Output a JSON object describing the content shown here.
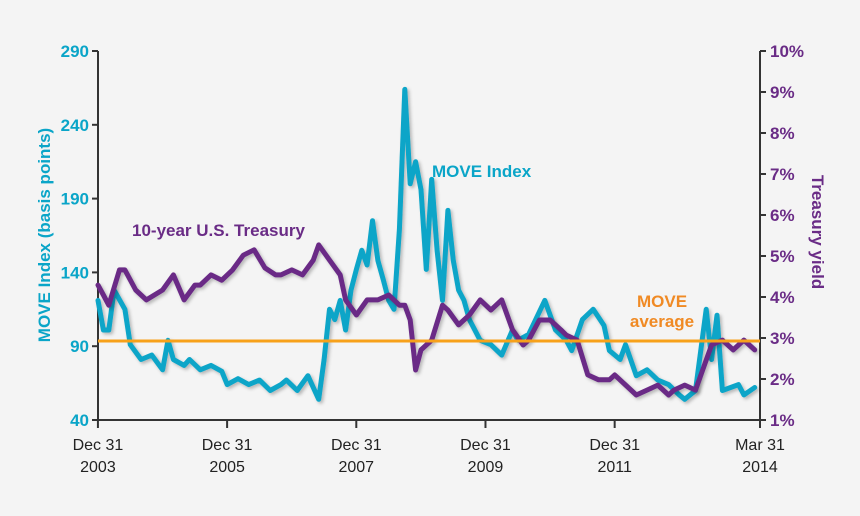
{
  "chart_data": {
    "type": "line",
    "colors": {
      "move": "#0aa5c8",
      "treasury": "#6a2c86",
      "average": "#f7a11a",
      "average_label": "#f08a24",
      "background": "#f4f4f4",
      "axis": "#333333"
    },
    "y_left": {
      "label": "MOVE Index (basis points)",
      "range": [
        40,
        290
      ],
      "ticks": [
        "40",
        "90",
        "140",
        "190",
        "240",
        "290"
      ]
    },
    "y_right": {
      "label": "Treasury yield",
      "range": [
        1,
        10
      ],
      "ticks": [
        "1%",
        "2%",
        "3%",
        "4%",
        "5%",
        "6%",
        "7%",
        "8%",
        "9%",
        "10%"
      ]
    },
    "x_axis": {
      "range": [
        "2003-12-31",
        "2014-03-31"
      ],
      "ticks": [
        {
          "date": "2003-12-31",
          "line1": "Dec 31",
          "line2": "2003"
        },
        {
          "date": "2005-12-31",
          "line1": "Dec 31",
          "line2": "2005"
        },
        {
          "date": "2007-12-31",
          "line1": "Dec 31",
          "line2": "2007"
        },
        {
          "date": "2009-12-31",
          "line1": "Dec 31",
          "line2": "2009"
        },
        {
          "date": "2011-12-31",
          "line1": "Dec 31",
          "line2": "2011"
        },
        {
          "date": "2014-03-31",
          "line1": "Mar 31",
          "line2": "2014"
        }
      ]
    },
    "grid": false,
    "series": [
      {
        "name": "MOVE Index",
        "axis": "left",
        "points": [
          [
            "2004-01",
            121
          ],
          [
            "2004-02",
            101
          ],
          [
            "2004-03",
            101
          ],
          [
            "2004-04",
            128
          ],
          [
            "2004-06",
            115
          ],
          [
            "2004-07",
            91
          ],
          [
            "2004-09",
            81
          ],
          [
            "2004-11",
            84
          ],
          [
            "2005-01",
            74
          ],
          [
            "2005-02",
            94
          ],
          [
            "2005-03",
            81
          ],
          [
            "2005-05",
            77
          ],
          [
            "2005-06",
            81
          ],
          [
            "2005-08",
            74
          ],
          [
            "2005-10",
            77
          ],
          [
            "2005-12",
            73
          ],
          [
            "2006-01",
            64
          ],
          [
            "2006-03",
            68
          ],
          [
            "2006-05",
            64
          ],
          [
            "2006-07",
            67
          ],
          [
            "2006-09",
            60
          ],
          [
            "2006-11",
            64
          ],
          [
            "2006-12",
            67
          ],
          [
            "2007-02",
            60
          ],
          [
            "2007-04",
            70
          ],
          [
            "2007-06",
            54
          ],
          [
            "2007-07",
            81
          ],
          [
            "2007-08",
            115
          ],
          [
            "2007-09",
            108
          ],
          [
            "2007-10",
            121
          ],
          [
            "2007-11",
            101
          ],
          [
            "2007-12",
            128
          ],
          [
            "2008-01",
            142
          ],
          [
            "2008-02",
            155
          ],
          [
            "2008-03",
            145
          ],
          [
            "2008-04",
            175
          ],
          [
            "2008-05",
            148
          ],
          [
            "2008-06",
            135
          ],
          [
            "2008-07",
            121
          ],
          [
            "2008-08",
            115
          ],
          [
            "2008-09",
            169
          ],
          [
            "2008-10",
            264
          ],
          [
            "2008-11",
            200
          ],
          [
            "2008-12",
            215
          ],
          [
            "2009-01",
            196
          ],
          [
            "2009-02",
            142
          ],
          [
            "2009-03",
            203
          ],
          [
            "2009-04",
            155
          ],
          [
            "2009-05",
            121
          ],
          [
            "2009-06",
            182
          ],
          [
            "2009-07",
            148
          ],
          [
            "2009-08",
            128
          ],
          [
            "2009-09",
            121
          ],
          [
            "2009-10",
            108
          ],
          [
            "2009-12",
            94
          ],
          [
            "2010-02",
            91
          ],
          [
            "2010-04",
            84
          ],
          [
            "2010-06",
            101
          ],
          [
            "2010-07",
            94
          ],
          [
            "2010-09",
            98
          ],
          [
            "2010-12",
            121
          ],
          [
            "2011-02",
            101
          ],
          [
            "2011-04",
            94
          ],
          [
            "2011-05",
            87
          ],
          [
            "2011-07",
            108
          ],
          [
            "2011-09",
            115
          ],
          [
            "2011-11",
            104
          ],
          [
            "2011-12",
            87
          ],
          [
            "2012-02",
            81
          ],
          [
            "2012-03",
            91
          ],
          [
            "2012-05",
            70
          ],
          [
            "2012-07",
            74
          ],
          [
            "2012-09",
            67
          ],
          [
            "2012-11",
            64
          ],
          [
            "2013-01",
            57
          ],
          [
            "2013-02",
            54
          ],
          [
            "2013-04",
            60
          ],
          [
            "2013-06",
            115
          ],
          [
            "2013-07",
            81
          ],
          [
            "2013-08",
            111
          ],
          [
            "2013-09",
            60
          ],
          [
            "2013-12",
            64
          ],
          [
            "2014-01",
            57
          ],
          [
            "2014-03",
            62
          ]
        ]
      },
      {
        "name": "10-year U.S. Treasury",
        "axis": "right",
        "points": [
          [
            "2004-01",
            4.29
          ],
          [
            "2004-02",
            4.05
          ],
          [
            "2004-03",
            3.8
          ],
          [
            "2004-05",
            4.66
          ],
          [
            "2004-06",
            4.66
          ],
          [
            "2004-08",
            4.17
          ],
          [
            "2004-10",
            3.93
          ],
          [
            "2005-01",
            4.17
          ],
          [
            "2005-03",
            4.54
          ],
          [
            "2005-05",
            3.93
          ],
          [
            "2005-07",
            4.29
          ],
          [
            "2005-08",
            4.29
          ],
          [
            "2005-10",
            4.54
          ],
          [
            "2005-12",
            4.41
          ],
          [
            "2006-02",
            4.66
          ],
          [
            "2006-04",
            5.02
          ],
          [
            "2006-06",
            5.15
          ],
          [
            "2006-08",
            4.71
          ],
          [
            "2006-10",
            4.54
          ],
          [
            "2006-11",
            4.54
          ],
          [
            "2007-01",
            4.66
          ],
          [
            "2007-03",
            4.54
          ],
          [
            "2007-05",
            4.9
          ],
          [
            "2007-06",
            5.27
          ],
          [
            "2007-08",
            4.9
          ],
          [
            "2007-10",
            4.54
          ],
          [
            "2007-11",
            3.93
          ],
          [
            "2008-01",
            3.56
          ],
          [
            "2008-03",
            3.93
          ],
          [
            "2008-05",
            3.93
          ],
          [
            "2008-07",
            4.05
          ],
          [
            "2008-09",
            3.8
          ],
          [
            "2008-10",
            3.8
          ],
          [
            "2008-11",
            3.44
          ],
          [
            "2008-12",
            2.22
          ],
          [
            "2009-01",
            2.71
          ],
          [
            "2009-03",
            2.95
          ],
          [
            "2009-05",
            3.8
          ],
          [
            "2009-06",
            3.68
          ],
          [
            "2009-08",
            3.32
          ],
          [
            "2009-10",
            3.56
          ],
          [
            "2009-12",
            3.93
          ],
          [
            "2010-02",
            3.68
          ],
          [
            "2010-04",
            3.93
          ],
          [
            "2010-06",
            3.2
          ],
          [
            "2010-08",
            2.83
          ],
          [
            "2010-09",
            2.95
          ],
          [
            "2010-11",
            3.44
          ],
          [
            "2011-01",
            3.44
          ],
          [
            "2011-03",
            3.2
          ],
          [
            "2011-04",
            3.07
          ],
          [
            "2011-06",
            2.95
          ],
          [
            "2011-08",
            2.1
          ],
          [
            "2011-10",
            1.98
          ],
          [
            "2011-12",
            1.98
          ],
          [
            "2012-01",
            2.1
          ],
          [
            "2012-05",
            1.61
          ],
          [
            "2012-07",
            1.73
          ],
          [
            "2012-09",
            1.85
          ],
          [
            "2012-11",
            1.61
          ],
          [
            "2012-12",
            1.73
          ],
          [
            "2013-02",
            1.85
          ],
          [
            "2013-04",
            1.73
          ],
          [
            "2013-05",
            2.1
          ],
          [
            "2013-07",
            2.83
          ],
          [
            "2013-09",
            2.95
          ],
          [
            "2013-11",
            2.71
          ],
          [
            "2014-01",
            2.95
          ],
          [
            "2014-03",
            2.71
          ]
        ]
      }
    ],
    "average": {
      "label_line1": "MOVE",
      "label_line2": "average",
      "value": 93.5,
      "axis": "left"
    },
    "annotations": {
      "move": "MOVE Index",
      "treasury": "10-year U.S. Treasury"
    }
  }
}
